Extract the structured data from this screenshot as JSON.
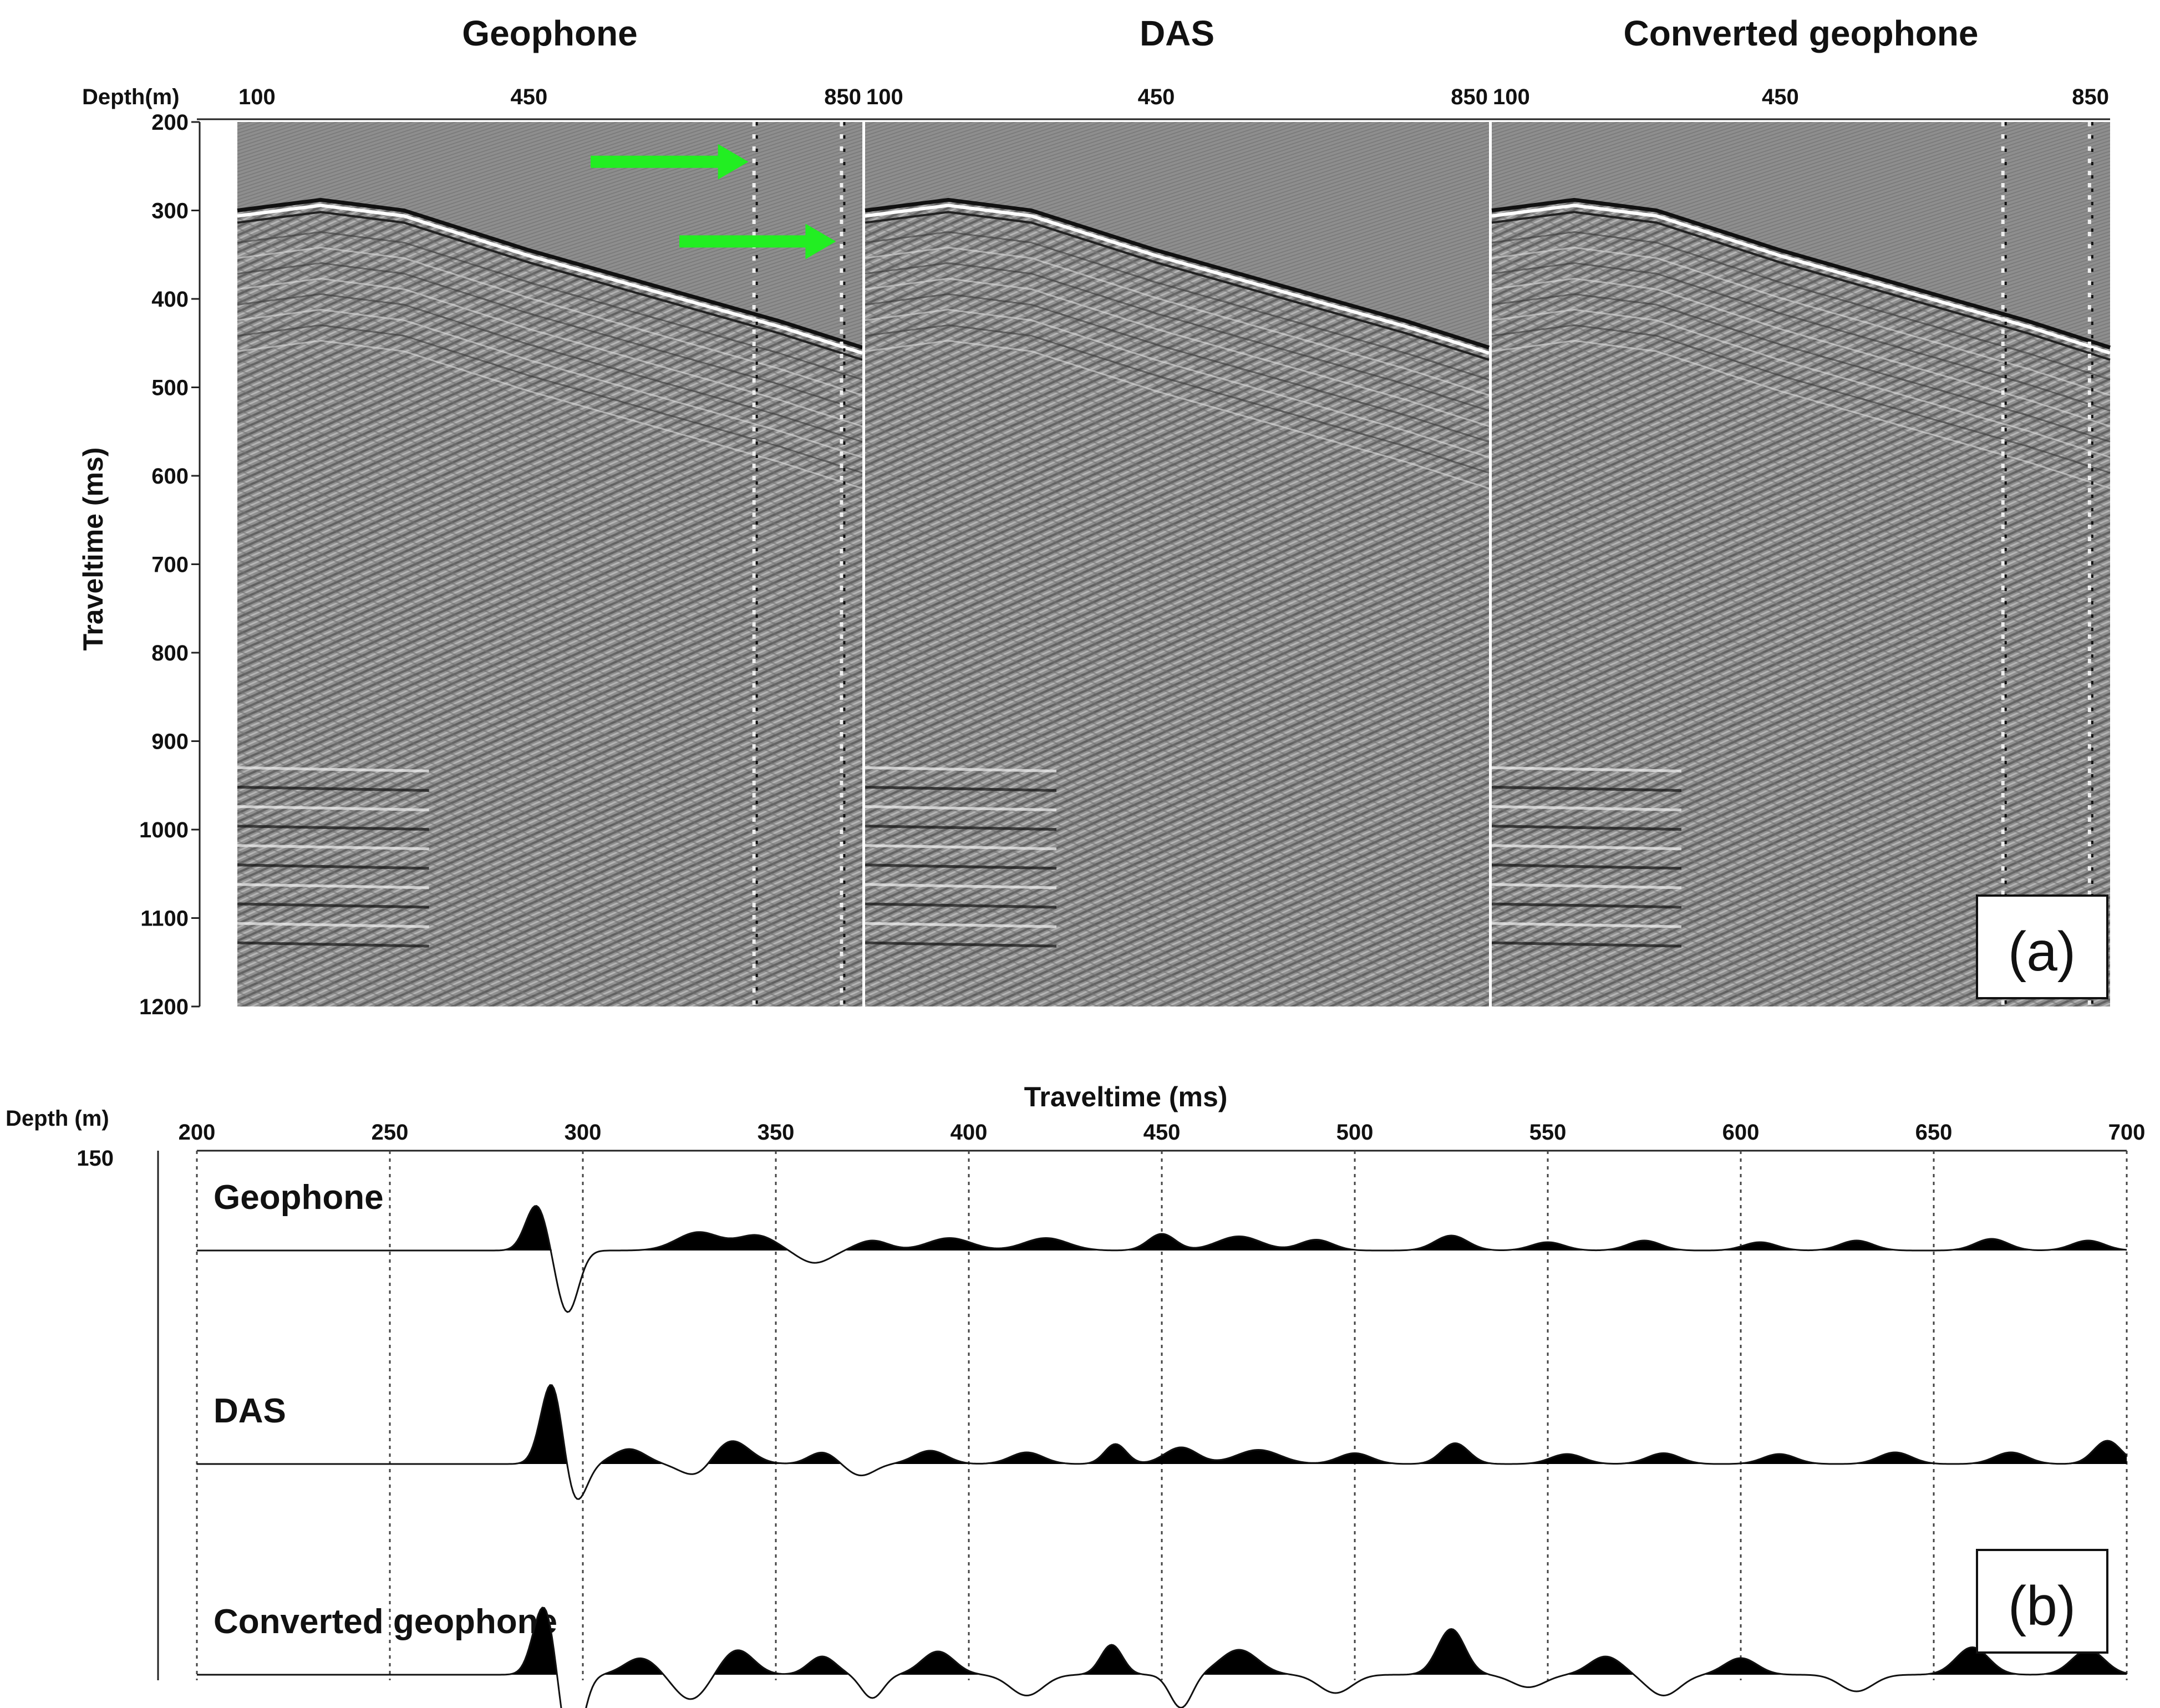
{
  "chart_data": [
    {
      "type": "heatmap",
      "panel_label": "(a)",
      "x_axis_label": "Depth(m)",
      "y_axis_label": "Traveltime (ms)",
      "y_ticks": [
        200,
        300,
        400,
        500,
        600,
        700,
        800,
        900,
        1000,
        1100,
        1200
      ],
      "ylim": [
        200,
        1200
      ],
      "xlim": [
        100,
        850
      ],
      "y_reversed": true,
      "colormap": "grayscale",
      "panels": [
        {
          "title": "Geophone",
          "x_ticks": [
            100,
            450,
            850
          ],
          "bad_traces_depth_m": [
            720,
            825
          ]
        },
        {
          "title": "DAS",
          "x_ticks": [
            100,
            450,
            850
          ],
          "bad_traces_depth_m": []
        },
        {
          "title": "Converted geophone",
          "x_ticks": [
            100,
            450,
            850
          ],
          "bad_traces_depth_m": [
            720,
            825
          ]
        }
      ],
      "first_break_ms": {
        "depth_m": [
          100,
          200,
          300,
          450,
          600,
          750,
          850
        ],
        "time_ms": [
          300,
          288,
          300,
          345,
          385,
          425,
          455
        ]
      },
      "arrow_color": "#22ee22"
    },
    {
      "type": "line",
      "panel_label": "(b)",
      "xlabel": "Traveltime (ms)",
      "ylabel": "Depth (m)",
      "depth_label_value": "150",
      "x_ticks": [
        200,
        250,
        300,
        350,
        400,
        450,
        500,
        550,
        600,
        650,
        700
      ],
      "xlim": [
        200,
        700
      ],
      "grid": "vertical dotted",
      "fill": "positive lobes black",
      "series": [
        {
          "name": "Geophone",
          "events_ms": [
            [
              288,
              0.55,
              4
            ],
            [
              296,
              -0.75,
              4
            ],
            [
              330,
              0.22,
              8
            ],
            [
              345,
              0.18,
              7
            ],
            [
              360,
              -0.15,
              6
            ],
            [
              375,
              0.12,
              6
            ],
            [
              395,
              0.15,
              8
            ],
            [
              420,
              0.15,
              8
            ],
            [
              450,
              0.2,
              5
            ],
            [
              470,
              0.17,
              8
            ],
            [
              490,
              0.13,
              6
            ],
            [
              525,
              0.18,
              6
            ],
            [
              550,
              0.1,
              6
            ],
            [
              575,
              0.12,
              6
            ],
            [
              605,
              0.1,
              6
            ],
            [
              630,
              0.12,
              6
            ],
            [
              665,
              0.14,
              6
            ],
            [
              690,
              0.12,
              6
            ]
          ]
        },
        {
          "name": "DAS",
          "events_ms": [
            [
              292,
              1.0,
              4
            ],
            [
              298,
              -0.5,
              4
            ],
            [
              312,
              0.18,
              6
            ],
            [
              330,
              -0.18,
              6
            ],
            [
              338,
              0.3,
              7
            ],
            [
              362,
              0.14,
              5
            ],
            [
              372,
              -0.14,
              5
            ],
            [
              390,
              0.16,
              6
            ],
            [
              415,
              0.14,
              6
            ],
            [
              438,
              0.24,
              4
            ],
            [
              455,
              0.2,
              6
            ],
            [
              475,
              0.17,
              8
            ],
            [
              500,
              0.13,
              6
            ],
            [
              526,
              0.25,
              5
            ],
            [
              555,
              0.12,
              6
            ],
            [
              580,
              0.13,
              6
            ],
            [
              610,
              0.12,
              6
            ],
            [
              640,
              0.14,
              6
            ],
            [
              670,
              0.14,
              6
            ],
            [
              695,
              0.28,
              5
            ]
          ]
        },
        {
          "name": "Converted geophone",
          "events_ms": [
            [
              290,
              0.85,
              4
            ],
            [
              297,
              -1.0,
              4
            ],
            [
              315,
              0.2,
              6
            ],
            [
              328,
              -0.3,
              6
            ],
            [
              340,
              0.3,
              6
            ],
            [
              362,
              0.22,
              5
            ],
            [
              375,
              -0.28,
              4
            ],
            [
              392,
              0.28,
              6
            ],
            [
              415,
              -0.25,
              6
            ],
            [
              437,
              0.36,
              4
            ],
            [
              455,
              -0.4,
              4
            ],
            [
              470,
              0.3,
              7
            ],
            [
              495,
              -0.22,
              6
            ],
            [
              525,
              0.55,
              5
            ],
            [
              545,
              -0.15,
              6
            ],
            [
              565,
              0.22,
              6
            ],
            [
              580,
              -0.25,
              6
            ],
            [
              600,
              0.2,
              6
            ],
            [
              630,
              -0.2,
              6
            ],
            [
              660,
              0.33,
              6
            ],
            [
              690,
              0.3,
              6
            ]
          ]
        }
      ]
    }
  ]
}
